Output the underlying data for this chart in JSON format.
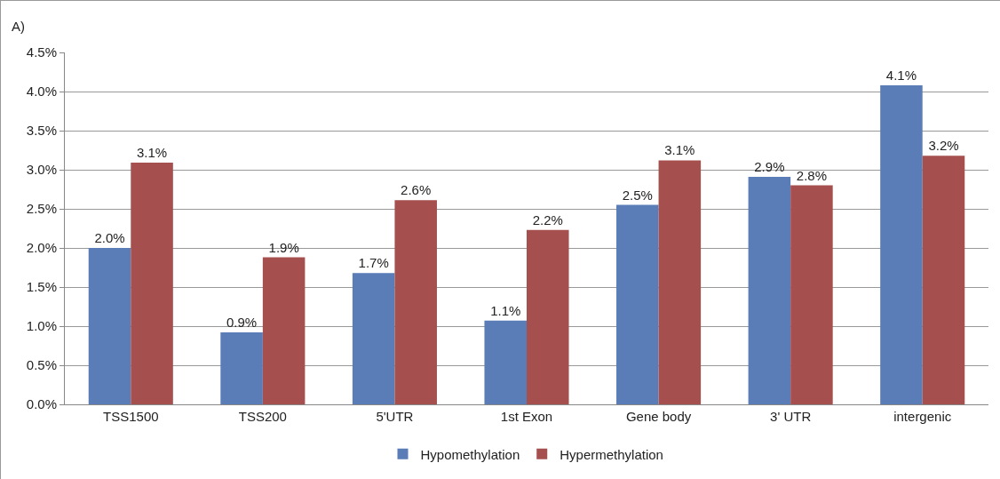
{
  "chart_data": {
    "type": "bar",
    "annotations": [
      "A)"
    ],
    "categories": [
      "TSS1500",
      "TSS200",
      "5'UTR",
      "1st Exon",
      "Gene body",
      "3' UTR",
      "intergenic"
    ],
    "series": [
      {
        "name": "Hypomethylation",
        "color": "#5a7db8",
        "values": [
          2.0,
          0.92,
          1.68,
          1.07,
          2.55,
          2.91,
          4.08
        ],
        "value_labels": [
          "2.0%",
          "0.9%",
          "1.7%",
          "1.1%",
          "2.5%",
          "2.9%",
          "4.1%"
        ]
      },
      {
        "name": "Hypermethylation",
        "color": "#a5504f",
        "values": [
          3.09,
          1.88,
          2.61,
          2.23,
          3.12,
          2.8,
          3.18
        ],
        "value_labels": [
          "3.1%",
          "1.9%",
          "2.6%",
          "2.2%",
          "3.1%",
          "2.8%",
          "3.2%"
        ]
      }
    ],
    "ylim": [
      0,
      4.5
    ],
    "yticks": [
      {
        "value": 0,
        "label": "0.0%"
      },
      {
        "value": 0.5,
        "label": "0.5%"
      },
      {
        "value": 1,
        "label": "1.0%"
      },
      {
        "value": 1.5,
        "label": "1.5%"
      },
      {
        "value": 2,
        "label": "2.0%"
      },
      {
        "value": 2.5,
        "label": "2.5%"
      },
      {
        "value": 3,
        "label": "3.0%"
      },
      {
        "value": 3.5,
        "label": "3.5%"
      },
      {
        "value": 4,
        "label": "4.0%"
      },
      {
        "value": 4.5,
        "label": "4.5%"
      }
    ],
    "grid": "y",
    "legend": "bottom"
  }
}
